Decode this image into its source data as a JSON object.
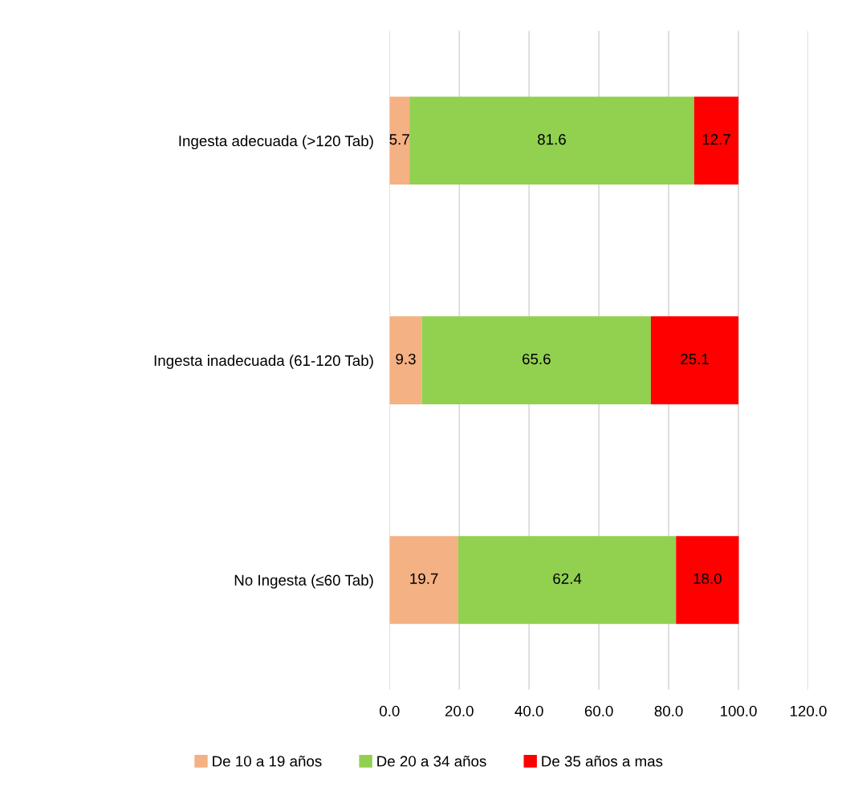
{
  "chart_data": {
    "type": "bar",
    "orientation": "horizontal",
    "stacked": true,
    "categories": [
      "Ingesta adecuada (>120 Tab)",
      "Ingesta inadecuada (61-120 Tab)",
      "No Ingesta (≤60 Tab)"
    ],
    "series": [
      {
        "name": "De 10 a 19 años",
        "color": "#f4b183",
        "values": [
          5.7,
          9.3,
          19.7
        ]
      },
      {
        "name": "De 20 a 34 años",
        "color": "#92d050",
        "values": [
          81.6,
          65.6,
          62.4
        ]
      },
      {
        "name": "De 35 años a mas",
        "color": "#ff0000",
        "values": [
          12.7,
          25.1,
          18.0
        ],
        "value_labels": [
          "12.7",
          "25.1",
          "18.0"
        ]
      }
    ],
    "xlim": [
      0,
      120
    ],
    "xticks": [
      {
        "value": 0,
        "label": "0.0"
      },
      {
        "value": 20,
        "label": "20.0"
      },
      {
        "value": 40,
        "label": "40.0"
      },
      {
        "value": 60,
        "label": "60.0"
      },
      {
        "value": 80,
        "label": "80.0"
      },
      {
        "value": 100,
        "label": "100.0"
      },
      {
        "value": 120,
        "label": "120.0"
      }
    ],
    "grid": "x",
    "legend": "bottom",
    "data_labels": true
  }
}
